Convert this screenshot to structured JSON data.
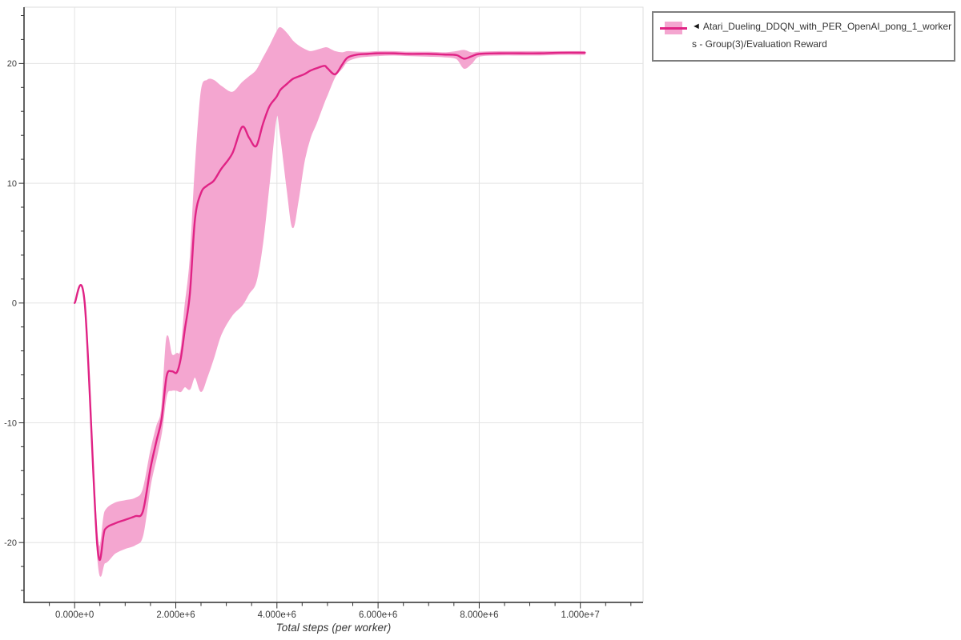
{
  "legend": {
    "pointer_icon": "◄",
    "label_line1": "Atari_Dueling_DDQN_with_PER_OpenAI_pong_1_worker",
    "label_line2": "s - Group(3)/Evaluation Reward",
    "border_color": "#7e7e7e",
    "text_color": "#333333"
  },
  "colors": {
    "line": "#e02385",
    "band": "#f4a6d0",
    "grid": "#e3e3e3",
    "plot_border": "#dedede",
    "axis": "#2f2f2f",
    "tick_text": "#3b3b3b",
    "background": "#ffffff"
  },
  "chart_data": {
    "type": "line",
    "title": "",
    "xlabel": "Total steps (per worker)",
    "ylabel": "",
    "grid": "major",
    "legend_position": "top-right outside",
    "xlim": [
      -1000000,
      11240000
    ],
    "ylim": [
      -25,
      24.7
    ],
    "x_major_ticks": [
      0,
      2000000,
      4000000,
      6000000,
      8000000,
      10000000
    ],
    "x_major_tick_labels": [
      "0.000e+0",
      "2.000e+6",
      "4.000e+6",
      "6.000e+6",
      "8.000e+6",
      "1.000e+7"
    ],
    "x_minor_tick_step": 500000,
    "y_major_ticks": [
      -20,
      -10,
      0,
      10,
      20
    ],
    "y_major_tick_labels": [
      "-20",
      "-10",
      "0",
      "10",
      "20"
    ],
    "y_minor_tick_step": 2,
    "series": [
      {
        "name": "Atari_Dueling_DDQN_with_PER_OpenAI_pong_1_workers - Group(3)/Evaluation Reward",
        "color": "#e02385",
        "band_color": "#f4a6d0",
        "x": [
          0,
          200000,
          450000,
          600000,
          800000,
          1000000,
          1200000,
          1350000,
          1500000,
          1620000,
          1720000,
          1820000,
          1920000,
          2020000,
          2100000,
          2180000,
          2280000,
          2380000,
          2500000,
          2620000,
          2750000,
          2900000,
          3120000,
          3310000,
          3450000,
          3590000,
          3720000,
          3850000,
          3990000,
          4070000,
          4200000,
          4310000,
          4420000,
          4540000,
          4660000,
          4780000,
          4940000,
          5000000,
          5150000,
          5290000,
          5400000,
          5600000,
          5800000,
          6000000,
          6300000,
          6600000,
          7000000,
          7300000,
          7550000,
          7700000,
          7850000,
          8000000,
          8400000,
          8800000,
          9200000,
          9600000,
          10090000
        ],
        "mean": [
          0.0,
          0.0,
          -20.3,
          -18.9,
          -18.4,
          -18.1,
          -17.8,
          -17.4,
          -13.8,
          -11.5,
          -9.7,
          -6.1,
          -5.7,
          -5.8,
          -4.6,
          -2.2,
          0.8,
          7.0,
          9.2,
          9.8,
          10.2,
          11.2,
          12.5,
          14.7,
          13.8,
          13.1,
          14.9,
          16.4,
          17.2,
          17.8,
          18.3,
          18.7,
          18.9,
          19.1,
          19.4,
          19.6,
          19.8,
          19.6,
          19.1,
          19.9,
          20.5,
          20.75,
          20.8,
          20.85,
          20.85,
          20.8,
          20.8,
          20.75,
          20.7,
          20.4,
          20.6,
          20.8,
          20.85,
          20.85,
          20.85,
          20.9,
          20.9
        ],
        "lo": [
          0.0,
          0.0,
          -21.0,
          -21.7,
          -20.9,
          -20.5,
          -20.2,
          -19.4,
          -15.2,
          -12.9,
          -10.8,
          -7.7,
          -7.3,
          -7.3,
          -7.4,
          -7.0,
          -7.2,
          -6.2,
          -7.4,
          -6.2,
          -4.6,
          -2.6,
          -1.0,
          -0.2,
          0.8,
          1.8,
          5.0,
          10.0,
          15.5,
          14.0,
          9.5,
          6.3,
          8.5,
          11.8,
          13.8,
          15.0,
          16.8,
          17.4,
          18.9,
          19.6,
          20.2,
          20.5,
          20.6,
          20.65,
          20.7,
          20.65,
          20.6,
          20.55,
          20.4,
          19.6,
          20.0,
          20.6,
          20.7,
          20.7,
          20.7,
          20.75,
          20.75
        ],
        "hi": [
          0.0,
          0.0,
          -19.4,
          -17.4,
          -16.7,
          -16.5,
          -16.3,
          -15.6,
          -12.4,
          -10.3,
          -8.8,
          -2.9,
          -4.3,
          -4.2,
          -3.9,
          -0.3,
          3.5,
          11.0,
          17.6,
          18.6,
          18.6,
          18.1,
          17.6,
          18.4,
          18.9,
          19.4,
          20.4,
          21.4,
          22.6,
          23.0,
          22.5,
          21.9,
          21.5,
          21.2,
          21.0,
          21.1,
          21.3,
          21.3,
          21.0,
          20.9,
          21.0,
          20.95,
          20.95,
          21.0,
          21.0,
          20.95,
          20.95,
          20.9,
          21.0,
          21.1,
          20.9,
          20.95,
          21.0,
          21.0,
          21.0,
          21.0,
          21.0
        ]
      }
    ]
  }
}
